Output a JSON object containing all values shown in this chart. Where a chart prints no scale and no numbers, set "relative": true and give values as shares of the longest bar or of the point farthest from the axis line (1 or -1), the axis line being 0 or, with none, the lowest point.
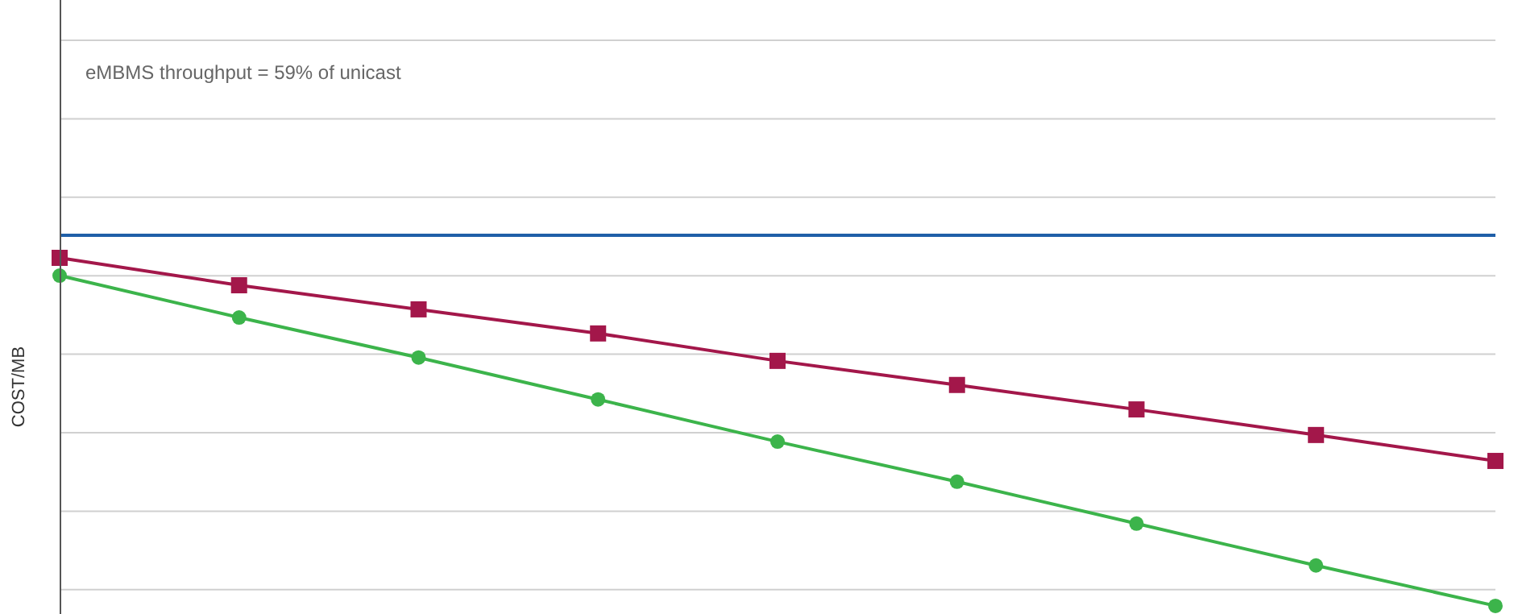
{
  "chart_data": {
    "type": "line",
    "relative": true,
    "ylabel": "COST/MB",
    "annotations": [
      "eMBMS throughput = 59% of unicast"
    ],
    "grid": "y",
    "categories": [
      null,
      null,
      null,
      null,
      null,
      null,
      null,
      null,
      null
    ],
    "series": [
      {
        "color": "#1f5fa8",
        "marker": "none",
        "values": [
          1,
          1,
          1,
          1,
          1,
          1,
          1,
          1,
          1
        ]
      },
      {
        "color": "#a3174a",
        "marker": "square",
        "values": [
          0.939,
          0.865,
          0.8,
          0.735,
          0.661,
          0.596,
          0.53,
          0.461,
          0.391
        ]
      },
      {
        "color": "#3cb44b",
        "marker": "circle",
        "values": [
          0.891,
          0.778,
          0.67,
          0.557,
          0.443,
          0.335,
          0.222,
          0.109,
          0
        ]
      }
    ]
  }
}
